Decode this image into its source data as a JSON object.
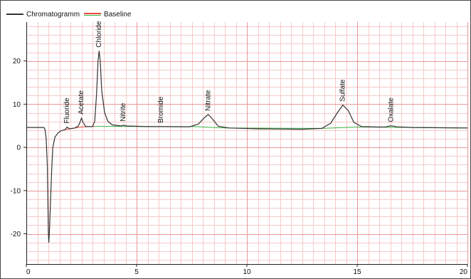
{
  "chart_data": {
    "type": "line",
    "title": "",
    "xlabel": "",
    "ylabel": "",
    "xlim": [
      0,
      20
    ],
    "ylim": [
      -27,
      29
    ],
    "x_ticks": [
      0,
      5,
      10,
      15,
      20
    ],
    "y_ticks": [
      -20,
      -10,
      0,
      10,
      20
    ],
    "grid": true,
    "legend_position": "top-left",
    "legend": [
      {
        "label": "Chromatogramm",
        "color": "#333333"
      },
      {
        "label": "Baseline",
        "colors": [
          "#e8473c",
          "#3cb043"
        ]
      }
    ],
    "series": [
      {
        "name": "Chromatogramm",
        "color": "#333333",
        "points": [
          [
            0,
            4.6
          ],
          [
            0.8,
            4.6
          ],
          [
            0.85,
            4.1
          ],
          [
            0.9,
            2.0
          ],
          [
            0.95,
            -4.0
          ],
          [
            1.0,
            -20.0
          ],
          [
            1.02,
            -22.0
          ],
          [
            1.05,
            -19.0
          ],
          [
            1.1,
            -12.0
          ],
          [
            1.15,
            -5.0
          ],
          [
            1.2,
            0.0
          ],
          [
            1.3,
            2.4
          ],
          [
            1.45,
            3.4
          ],
          [
            1.6,
            3.9
          ],
          [
            1.75,
            4.1
          ],
          [
            1.85,
            4.7
          ],
          [
            1.95,
            4.3
          ],
          [
            2.2,
            4.5
          ],
          [
            2.35,
            4.9
          ],
          [
            2.45,
            6.0
          ],
          [
            2.5,
            6.8
          ],
          [
            2.57,
            5.8
          ],
          [
            2.7,
            4.8
          ],
          [
            3.0,
            4.8
          ],
          [
            3.1,
            6.0
          ],
          [
            3.18,
            12.0
          ],
          [
            3.25,
            20.0
          ],
          [
            3.3,
            22.3
          ],
          [
            3.35,
            20.0
          ],
          [
            3.42,
            13.0
          ],
          [
            3.55,
            8.0
          ],
          [
            3.7,
            6.0
          ],
          [
            3.9,
            5.2
          ],
          [
            4.3,
            4.95
          ],
          [
            4.4,
            5.15
          ],
          [
            4.55,
            4.95
          ],
          [
            5.5,
            4.8
          ],
          [
            6.2,
            4.8
          ],
          [
            7.4,
            4.75
          ],
          [
            7.8,
            5.4
          ],
          [
            8.1,
            7.0
          ],
          [
            8.25,
            7.6
          ],
          [
            8.45,
            6.5
          ],
          [
            8.7,
            4.9
          ],
          [
            9.2,
            4.5
          ],
          [
            10.5,
            4.3
          ],
          [
            12.5,
            4.2
          ],
          [
            13.4,
            4.4
          ],
          [
            13.8,
            5.6
          ],
          [
            14.1,
            8.0
          ],
          [
            14.35,
            9.8
          ],
          [
            14.6,
            8.5
          ],
          [
            14.85,
            5.8
          ],
          [
            15.2,
            4.8
          ],
          [
            16.0,
            4.7
          ],
          [
            16.3,
            4.75
          ],
          [
            16.55,
            5.0
          ],
          [
            16.8,
            4.75
          ],
          [
            17.5,
            4.6
          ],
          [
            20,
            4.5
          ]
        ]
      },
      {
        "name": "Baseline",
        "segments": [
          {
            "color": "#e8473c",
            "points": [
              [
                1.75,
                4.1
              ],
              [
                2.45,
                4.7
              ],
              [
                3.1,
                4.85
              ]
            ]
          },
          {
            "color": "#3cb043",
            "points": [
              [
                3.1,
                4.85
              ],
              [
                7.6,
                4.8
              ],
              [
                9.0,
                4.5
              ],
              [
                13.4,
                4.4
              ],
              [
                15.0,
                4.7
              ],
              [
                20,
                4.5
              ]
            ]
          }
        ]
      }
    ],
    "peak_labels": [
      {
        "text": "Fluoride",
        "x": 1.85,
        "y": 4.7
      },
      {
        "text": "Acetate",
        "x": 2.5,
        "y": 6.8
      },
      {
        "text": "Chloride",
        "x": 3.3,
        "y": 22.3
      },
      {
        "text": "Nitrite",
        "x": 4.4,
        "y": 5.15
      },
      {
        "text": "Bromide",
        "x": 6.1,
        "y": 4.8
      },
      {
        "text": "Nitrate",
        "x": 8.25,
        "y": 7.6
      },
      {
        "text": "Sulfate",
        "x": 14.35,
        "y": 9.8
      },
      {
        "text": "Oxalate",
        "x": 16.55,
        "y": 5.0
      }
    ]
  }
}
